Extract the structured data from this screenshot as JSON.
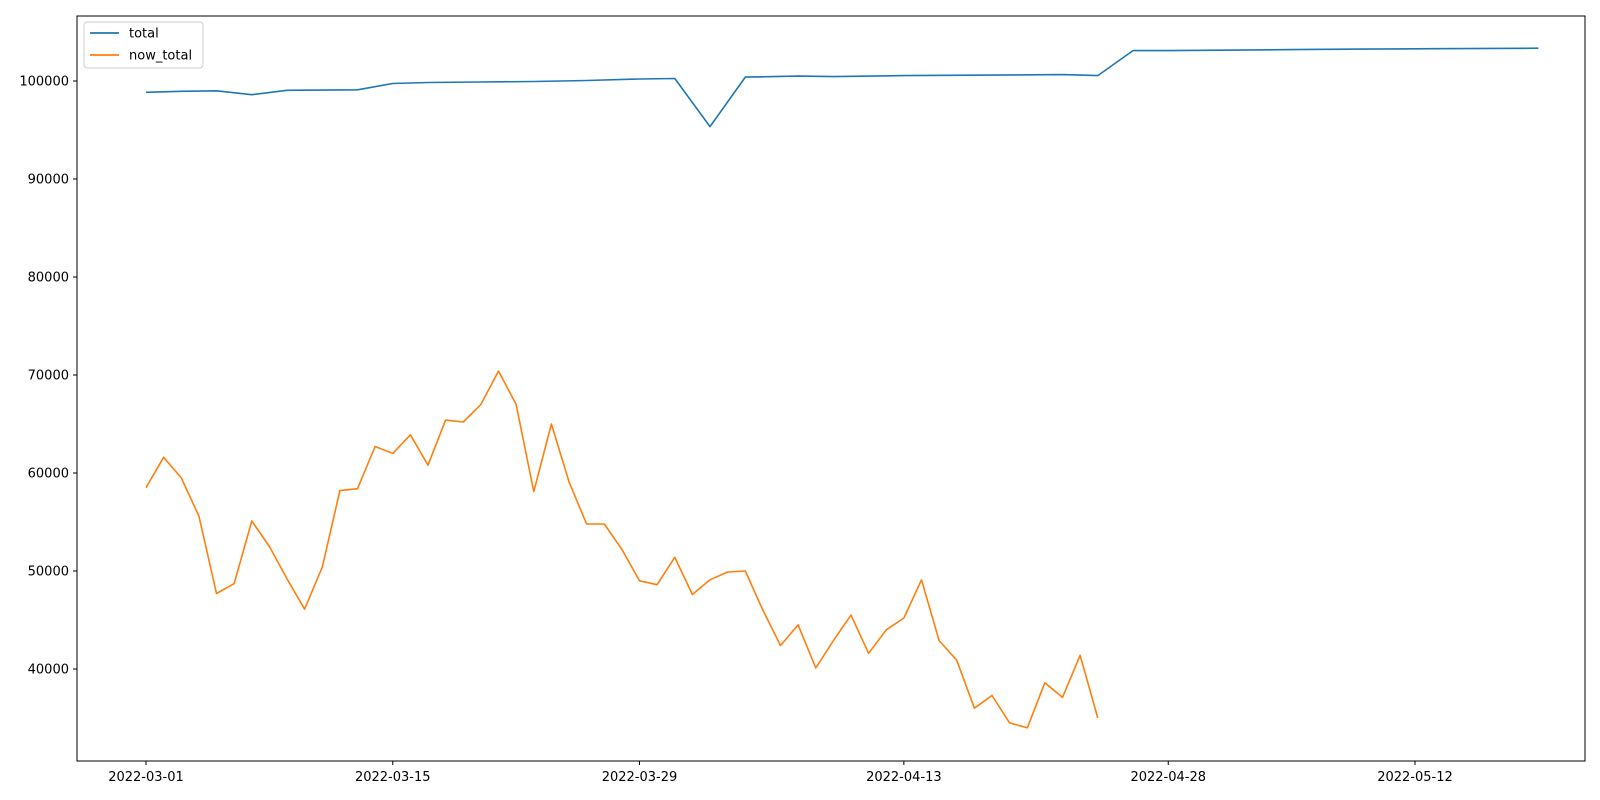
{
  "chart_data": {
    "type": "line",
    "title": "",
    "xlabel": "",
    "ylabel": "",
    "x_dates": [
      "2022-03-01",
      "2022-03-02",
      "2022-03-03",
      "2022-03-04",
      "2022-03-05",
      "2022-03-06",
      "2022-03-07",
      "2022-03-08",
      "2022-03-09",
      "2022-03-10",
      "2022-03-11",
      "2022-03-12",
      "2022-03-13",
      "2022-03-14",
      "2022-03-15",
      "2022-03-16",
      "2022-03-17",
      "2022-03-18",
      "2022-03-19",
      "2022-03-20",
      "2022-03-21",
      "2022-03-22",
      "2022-03-23",
      "2022-03-24",
      "2022-03-25",
      "2022-03-26",
      "2022-03-27",
      "2022-03-28",
      "2022-03-29",
      "2022-03-30",
      "2022-03-31",
      "2022-04-01",
      "2022-04-02",
      "2022-04-03",
      "2022-04-04",
      "2022-04-05",
      "2022-04-06",
      "2022-04-07",
      "2022-04-08",
      "2022-04-09",
      "2022-04-10",
      "2022-04-11",
      "2022-04-12",
      "2022-04-13",
      "2022-04-14",
      "2022-04-15",
      "2022-04-16",
      "2022-04-17",
      "2022-04-18",
      "2022-04-19",
      "2022-04-20",
      "2022-04-21",
      "2022-04-22",
      "2022-04-23",
      "2022-04-24",
      "2022-04-25",
      "2022-04-26",
      "2022-04-27",
      "2022-04-28",
      "2022-04-29",
      "2022-04-30",
      "2022-05-01",
      "2022-05-02",
      "2022-05-03",
      "2022-05-04",
      "2022-05-05",
      "2022-05-06",
      "2022-05-07",
      "2022-05-08",
      "2022-05-09",
      "2022-05-10",
      "2022-05-11",
      "2022-05-12",
      "2022-05-13",
      "2022-05-14",
      "2022-05-15",
      "2022-05-16",
      "2022-05-17",
      "2022-05-18",
      "2022-05-19"
    ],
    "series": [
      {
        "name": "total",
        "color": "#1f77b4",
        "points": [
          [
            "2022-03-01",
            98850
          ],
          [
            "2022-03-03",
            98950
          ],
          [
            "2022-03-05",
            99000
          ],
          [
            "2022-03-07",
            98600
          ],
          [
            "2022-03-09",
            99050
          ],
          [
            "2022-03-13",
            99100
          ],
          [
            "2022-03-15",
            99750
          ],
          [
            "2022-03-17",
            99850
          ],
          [
            "2022-03-20",
            99900
          ],
          [
            "2022-03-23",
            99950
          ],
          [
            "2022-03-26",
            100050
          ],
          [
            "2022-03-29",
            100200
          ],
          [
            "2022-03-31",
            100250
          ],
          [
            "2022-04-02",
            95350
          ],
          [
            "2022-04-04",
            100400
          ],
          [
            "2022-04-07",
            100500
          ],
          [
            "2022-04-09",
            100450
          ],
          [
            "2022-04-13",
            100550
          ],
          [
            "2022-04-18",
            100600
          ],
          [
            "2022-04-22",
            100650
          ],
          [
            "2022-04-24",
            100550
          ],
          [
            "2022-04-26",
            103100
          ],
          [
            "2022-04-28",
            103100
          ],
          [
            "2022-05-02",
            103150
          ],
          [
            "2022-05-05",
            103200
          ],
          [
            "2022-05-09",
            103250
          ],
          [
            "2022-05-13",
            103300
          ],
          [
            "2022-05-19",
            103350
          ]
        ]
      },
      {
        "name": "now_total",
        "color": "#ff7f0e",
        "points": [
          [
            "2022-03-01",
            58500
          ],
          [
            "2022-03-02",
            61600
          ],
          [
            "2022-03-03",
            59500
          ],
          [
            "2022-03-04",
            55600
          ],
          [
            "2022-03-05",
            47700
          ],
          [
            "2022-03-06",
            48700
          ],
          [
            "2022-03-07",
            55100
          ],
          [
            "2022-03-08",
            52500
          ],
          [
            "2022-03-09",
            49200
          ],
          [
            "2022-03-10",
            46100
          ],
          [
            "2022-03-11",
            50400
          ],
          [
            "2022-03-12",
            58200
          ],
          [
            "2022-03-13",
            58400
          ],
          [
            "2022-03-14",
            62700
          ],
          [
            "2022-03-15",
            62000
          ],
          [
            "2022-03-16",
            63900
          ],
          [
            "2022-03-17",
            60800
          ],
          [
            "2022-03-18",
            65400
          ],
          [
            "2022-03-19",
            65200
          ],
          [
            "2022-03-20",
            67000
          ],
          [
            "2022-03-21",
            70400
          ],
          [
            "2022-03-22",
            67000
          ],
          [
            "2022-03-23",
            58100
          ],
          [
            "2022-03-24",
            65000
          ],
          [
            "2022-03-25",
            59100
          ],
          [
            "2022-03-26",
            54800
          ],
          [
            "2022-03-27",
            54800
          ],
          [
            "2022-03-28",
            52200
          ],
          [
            "2022-03-29",
            49000
          ],
          [
            "2022-03-30",
            48600
          ],
          [
            "2022-03-31",
            51400
          ],
          [
            "2022-04-01",
            47600
          ],
          [
            "2022-04-02",
            49100
          ],
          [
            "2022-04-03",
            49900
          ],
          [
            "2022-04-04",
            50000
          ],
          [
            "2022-04-05",
            46000
          ],
          [
            "2022-04-06",
            42400
          ],
          [
            "2022-04-07",
            44500
          ],
          [
            "2022-04-08",
            40100
          ],
          [
            "2022-04-09",
            42900
          ],
          [
            "2022-04-10",
            45500
          ],
          [
            "2022-04-11",
            41600
          ],
          [
            "2022-04-12",
            44000
          ],
          [
            "2022-04-13",
            45200
          ],
          [
            "2022-04-14",
            49100
          ],
          [
            "2022-04-15",
            42900
          ],
          [
            "2022-04-16",
            40900
          ],
          [
            "2022-04-17",
            36000
          ],
          [
            "2022-04-18",
            37300
          ],
          [
            "2022-04-19",
            34500
          ],
          [
            "2022-04-20",
            34000
          ],
          [
            "2022-04-21",
            38600
          ],
          [
            "2022-04-22",
            37100
          ],
          [
            "2022-04-23",
            41400
          ],
          [
            "2022-04-24",
            35000
          ]
        ]
      }
    ],
    "x_ticks": [
      "2022-03-01",
      "2022-03-15",
      "2022-03-29",
      "2022-04-13",
      "2022-04-28",
      "2022-05-12"
    ],
    "y_ticks": [
      40000,
      50000,
      60000,
      70000,
      80000,
      90000,
      100000
    ],
    "xlim": [
      "2022-02-25",
      "2022-05-21"
    ],
    "ylim": [
      31000,
      107000
    ],
    "grid": false,
    "legend_position": "top-left"
  }
}
